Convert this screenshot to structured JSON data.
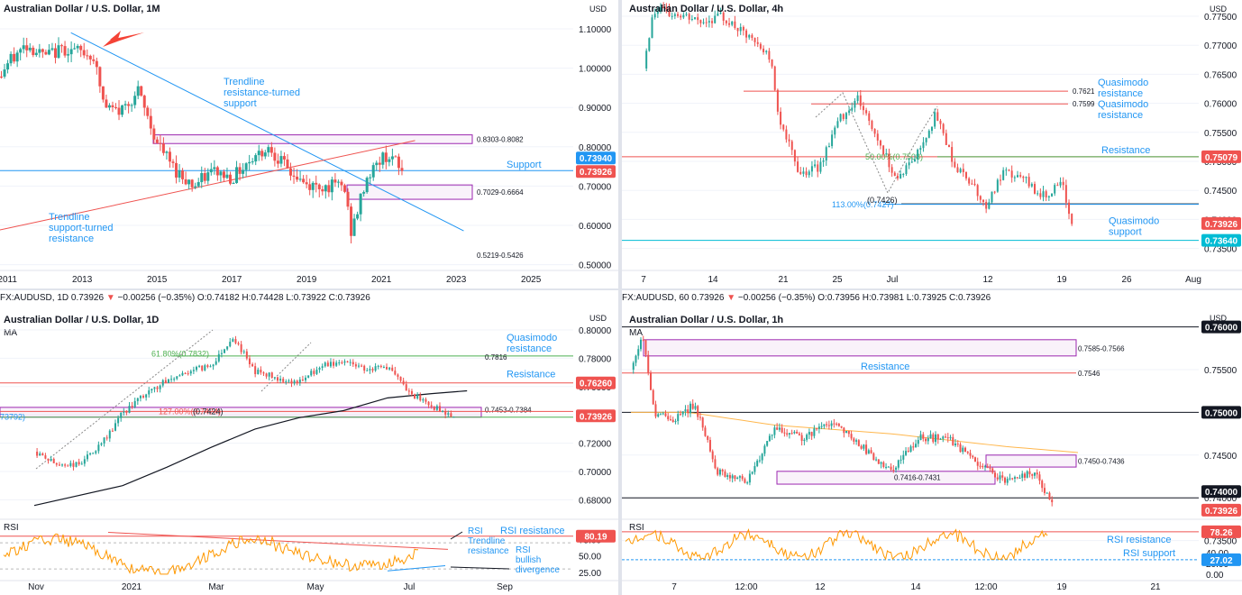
{
  "colors": {
    "up": "#26a69a",
    "down": "#ef5350",
    "blue": "#2196f3",
    "red": "#ef5350",
    "purple": "#9c27b0",
    "green": "#4caf50",
    "grid": "#f0f3fa",
    "axis_text": "#131722",
    "ma_orange": "#ffb74d",
    "rsi_orange": "#ff9800",
    "gray_dot": "#888888"
  },
  "panels": [
    {
      "id": "monthly",
      "title": "Australian Dollar / U.S. Dollar, 1M",
      "currency": "USD",
      "price_ticks": [
        "1.10000",
        "1.00000",
        "0.90000",
        "0.80000",
        "0.70000",
        "0.60000",
        "0.50000"
      ],
      "time_ticks": [
        "2011",
        "2013",
        "2015",
        "2017",
        "2019",
        "2021",
        "2023",
        "2025"
      ],
      "price_tags": [
        {
          "text": "0.73940",
          "color": "#2196f3"
        },
        {
          "text": "0.73926",
          "color": "#ef5350"
        }
      ],
      "annotations": [
        {
          "text": "Trendline\nresistance-turned\nsupport",
          "color": "#2196f3"
        },
        {
          "text": "Trendline\nsupport-turned\nresistance",
          "color": "#2196f3"
        },
        {
          "text": "Support",
          "color": "#2196f3"
        },
        {
          "text": "0.8303-0.8082",
          "color": "#131722"
        },
        {
          "text": "0.7029-0.6664",
          "color": "#131722"
        },
        {
          "text": "0.5219-0.5426",
          "color": "#131722"
        }
      ]
    },
    {
      "id": "h4",
      "title": "Australian Dollar / U.S. Dollar, 4h",
      "currency": "USD",
      "price_ticks": [
        "0.77500",
        "0.77000",
        "0.76500",
        "0.76000",
        "0.75500",
        "0.75000",
        "0.74500",
        "0.74000",
        "0.73500"
      ],
      "time_ticks": [
        "7",
        "14",
        "21",
        "25",
        "Jul",
        "12",
        "19",
        "26",
        "Aug"
      ],
      "price_tags": [
        {
          "text": "0.75079",
          "color": "#ef5350"
        },
        {
          "text": "0.73926",
          "color": "#ef5350"
        },
        {
          "text": "0.73640",
          "color": "#00bcd4"
        }
      ],
      "annotations": [
        {
          "text": "Quasimodo\nresistance",
          "color": "#2196f3"
        },
        {
          "text": "Quasimodo\nresistance",
          "color": "#2196f3"
        },
        {
          "text": "Resistance",
          "color": "#2196f3"
        },
        {
          "text": "Quasimodo\nsupport",
          "color": "#2196f3"
        },
        {
          "text": "0.7621",
          "color": "#131722"
        },
        {
          "text": "0.7599",
          "color": "#131722"
        },
        {
          "text": "50.00%(0.7508)",
          "color": "#4caf50"
        },
        {
          "text": "113.00%(0.7427)",
          "color": "#2196f3"
        },
        {
          "text": "(0.7426)",
          "color": "#131722"
        }
      ]
    },
    {
      "id": "d1",
      "title": "Australian Dollar / U.S. Dollar, 1D",
      "ohlc": {
        "symbol": "FX:AUDUSD, 1D",
        "last": "0.73926",
        "change": "−0.00256 (−0.35%)",
        "o": "0.74182",
        "h": "0.74428",
        "l": "0.73922",
        "c": "0.73926"
      },
      "currency": "USD",
      "ma_label": "MA",
      "price_ticks": [
        "0.80000",
        "0.78000",
        "0.76000",
        "0.74000",
        "0.72000",
        "0.70000",
        "0.68000"
      ],
      "time_ticks": [
        "Nov",
        "2021",
        "Mar",
        "May",
        "Jul",
        "Sep"
      ],
      "price_tags": [
        {
          "text": "0.76260",
          "color": "#ef5350"
        },
        {
          "text": "0.73926",
          "color": "#ef5350"
        }
      ],
      "annotations": [
        {
          "text": "Quasimodo\nresistance",
          "color": "#2196f3"
        },
        {
          "text": "Resistance",
          "color": "#2196f3"
        },
        {
          "text": "61.80%(0.7832)",
          "color": "#4caf50"
        },
        {
          "text": "127.00%(0.7424)",
          "color": "#ef5350"
        },
        {
          "text": "0.7816",
          "color": "#131722"
        },
        {
          "text": "0.7453-0.7384",
          "color": "#131722"
        },
        {
          "text": "(0.7424)",
          "color": "#131722"
        },
        {
          "text": "73792)",
          "color": "#2196f3"
        }
      ],
      "rsi": {
        "label": "RSI",
        "ticks": [
          "75.00",
          "50.00",
          "25.00"
        ],
        "tag": {
          "text": "80.19",
          "color": "#ef5350"
        },
        "annotations": [
          "RSI resistance",
          "RSI\nTrendline\nresistance",
          "RSI\nbullish\ndivergence"
        ]
      }
    },
    {
      "id": "h1",
      "title": "Australian Dollar / U.S. Dollar, 1h",
      "ohlc": {
        "symbol": "FX:AUDUSD, 60",
        "last": "0.73926",
        "change": "−0.00256 (−0.35%)",
        "o": "0.73956",
        "h": "0.73981",
        "l": "0.73925",
        "c": "0.73926"
      },
      "currency": "USD",
      "ma_label": "MA",
      "price_ticks": [
        "0.75500",
        "0.75000",
        "0.74500",
        "0.74000",
        "0.73500"
      ],
      "time_ticks": [
        "7",
        "12:00",
        "12",
        "14",
        "12:00",
        "19",
        "21"
      ],
      "price_tags": [
        {
          "text": "0.76000",
          "color": "#131722"
        },
        {
          "text": "0.75000",
          "color": "#131722"
        },
        {
          "text": "0.74000",
          "color": "#131722"
        },
        {
          "text": "0.73926",
          "color": "#ef5350"
        }
      ],
      "annotations": [
        {
          "text": "0.7585-0.7566",
          "color": "#131722"
        },
        {
          "text": "Resistance",
          "color": "#2196f3"
        },
        {
          "text": "0.7546",
          "color": "#131722"
        },
        {
          "text": "0.7450-0.7436",
          "color": "#131722"
        },
        {
          "text": "0.7416-0.7431",
          "color": "#131722"
        }
      ],
      "rsi": {
        "label": "RSI",
        "ticks": [
          "40.00",
          "20.00",
          "0.00"
        ],
        "tags": [
          {
            "text": "78.26",
            "color": "#ef5350"
          },
          {
            "text": "27.02",
            "color": "#2196f3"
          }
        ],
        "annotations": [
          "RSI resistance",
          "RSI support"
        ]
      }
    }
  ],
  "chart_data": [
    {
      "type": "candlestick",
      "title": "Australian Dollar / U.S. Dollar, 1M",
      "ylim": [
        0.48,
        1.16
      ],
      "x_range": [
        "2010",
        "2025"
      ],
      "levels": [
        {
          "name": "Support",
          "value": 0.7394
        },
        {
          "zone": "0.8303-0.8082",
          "from": 0.8082,
          "to": 0.8303
        },
        {
          "zone": "0.7029-0.6664",
          "from": 0.6664,
          "to": 0.7029
        },
        {
          "label": "0.5219-0.5426"
        }
      ],
      "trendlines": [
        {
          "name": "Trendline resistance-turned support",
          "from": [
            2012.7,
            1.09
          ],
          "to": [
            2023.2,
            0.586
          ]
        },
        {
          "name": "Trendline support-turned resistance",
          "from": [
            2010,
            0.572
          ],
          "to": [
            2021.9,
            0.816
          ]
        }
      ],
      "close_path": [
        [
          2010.5,
          0.93
        ],
        [
          2011.0,
          1.01
        ],
        [
          2011.5,
          1.06
        ],
        [
          2012.0,
          1.03
        ],
        [
          2012.5,
          1.05
        ],
        [
          2013.0,
          1.04
        ],
        [
          2013.3,
          1.03
        ],
        [
          2013.6,
          0.9
        ],
        [
          2014.0,
          0.89
        ],
        [
          2014.5,
          0.94
        ],
        [
          2015.0,
          0.81
        ],
        [
          2015.5,
          0.74
        ],
        [
          2016.0,
          0.7
        ],
        [
          2016.5,
          0.74
        ],
        [
          2017.0,
          0.72
        ],
        [
          2017.5,
          0.77
        ],
        [
          2018.0,
          0.8
        ],
        [
          2018.5,
          0.74
        ],
        [
          2019.0,
          0.7
        ],
        [
          2019.5,
          0.7
        ],
        [
          2020.0,
          0.7
        ],
        [
          2020.2,
          0.58
        ],
        [
          2020.6,
          0.72
        ],
        [
          2021.0,
          0.77
        ],
        [
          2021.2,
          0.78
        ],
        [
          2021.55,
          0.7393
        ]
      ]
    },
    {
      "type": "candlestick",
      "title": "Australian Dollar / U.S. Dollar, 4h",
      "ylim": [
        0.7325,
        0.7795
      ],
      "x_range": [
        "Jun 3",
        "Aug 2"
      ],
      "levels": [
        {
          "name": "Quasimodo resistance",
          "value": 0.7621
        },
        {
          "name": "Quasimodo resistance",
          "value": 0.7599
        },
        {
          "name": "Resistance",
          "value": 0.75079
        },
        {
          "name": "50.00%",
          "value": 0.7508
        },
        {
          "name": "113.00%",
          "value": 0.7427
        },
        {
          "value": 0.7426
        },
        {
          "name": "Quasimodo support",
          "value": 0.7364
        }
      ],
      "close_path": [
        [
          3,
          0.766
        ],
        [
          4,
          0.776
        ],
        [
          7,
          0.775
        ],
        [
          9,
          0.774
        ],
        [
          11,
          0.775
        ],
        [
          14,
          0.771
        ],
        [
          16,
          0.768
        ],
        [
          17,
          0.757
        ],
        [
          19,
          0.748
        ],
        [
          21,
          0.749
        ],
        [
          23,
          0.757
        ],
        [
          25,
          0.761
        ],
        [
          27,
          0.754
        ],
        [
          29,
          0.747
        ],
        [
          31,
          0.751
        ],
        [
          33,
          0.758
        ],
        [
          34,
          0.754
        ],
        [
          35,
          0.749
        ],
        [
          37,
          0.746
        ],
        [
          38,
          0.742
        ],
        [
          40,
          0.748
        ],
        [
          42,
          0.747
        ],
        [
          44,
          0.744
        ],
        [
          46,
          0.746
        ],
        [
          47,
          0.7393
        ]
      ]
    },
    {
      "type": "candlestick",
      "title": "Australian Dollar / U.S. Dollar, 1D",
      "ylim": [
        0.668,
        0.806
      ],
      "x_range": [
        "Oct 2020",
        "Sep 2021"
      ],
      "levels": [
        {
          "name": "Quasimodo resistance",
          "value": 0.7816
        },
        {
          "name": "61.80%",
          "value": 0.7832
        },
        {
          "name": "Resistance",
          "value": 0.7626
        },
        {
          "zone": "0.7453-0.7384",
          "from": 0.7384,
          "to": 0.7453
        },
        {
          "name": "127.00%",
          "value": 0.7424
        }
      ],
      "close_path": [
        [
          0,
          0.714
        ],
        [
          0.5,
          0.705
        ],
        [
          1,
          0.705
        ],
        [
          1.5,
          0.718
        ],
        [
          2,
          0.741
        ],
        [
          2.5,
          0.754
        ],
        [
          3,
          0.764
        ],
        [
          3.5,
          0.771
        ],
        [
          4,
          0.775
        ],
        [
          4.5,
          0.795
        ],
        [
          5,
          0.771
        ],
        [
          5.5,
          0.766
        ],
        [
          6,
          0.763
        ],
        [
          6.5,
          0.774
        ],
        [
          7,
          0.778
        ],
        [
          7.5,
          0.773
        ],
        [
          8,
          0.774
        ],
        [
          8.5,
          0.755
        ],
        [
          9,
          0.746
        ],
        [
          9.5,
          0.7393
        ]
      ],
      "ma_path": [
        [
          0,
          0.676
        ],
        [
          2,
          0.69
        ],
        [
          3,
          0.703
        ],
        [
          4,
          0.717
        ],
        [
          5,
          0.73
        ],
        [
          6,
          0.738
        ],
        [
          7,
          0.743
        ],
        [
          8,
          0.752
        ],
        [
          9,
          0.755
        ],
        [
          9.8,
          0.757
        ]
      ],
      "rsi": {
        "ylim": [
          15,
          95
        ],
        "value": 80.19,
        "reference_levels": [
          70,
          30
        ],
        "trendline": {
          "from": [
            3,
            86
          ],
          "to": [
            9.5,
            60
          ]
        },
        "divergence_line": {
          "from": [
            8.7,
            27
          ],
          "to": [
            9.8,
            35
          ]
        }
      }
    },
    {
      "type": "candlestick",
      "title": "Australian Dollar / U.S. Dollar, 1h",
      "ylim": [
        0.7315,
        0.7625
      ],
      "x_range": [
        "Jul 6",
        "Jul 21"
      ],
      "levels": [
        {
          "value": 0.76
        },
        {
          "zone": "0.7585-0.7566",
          "from": 0.7566,
          "to": 0.7585
        },
        {
          "name": "Resistance",
          "value": 0.7546
        },
        {
          "value": 0.75
        },
        {
          "zone": "0.7450-0.7436",
          "from": 0.7436,
          "to": 0.745
        },
        {
          "zone": "0.7416-0.7431",
          "from": 0.7416,
          "to": 0.7431
        },
        {
          "value": 0.74
        }
      ],
      "close_path": [
        [
          0,
          0.755
        ],
        [
          0.4,
          0.759
        ],
        [
          0.8,
          0.75
        ],
        [
          1.5,
          0.749
        ],
        [
          2.2,
          0.751
        ],
        [
          3,
          0.743
        ],
        [
          4,
          0.742
        ],
        [
          5,
          0.748
        ],
        [
          6,
          0.747
        ],
        [
          7,
          0.749
        ],
        [
          8,
          0.746
        ],
        [
          9,
          0.743
        ],
        [
          10,
          0.747
        ],
        [
          11,
          0.747
        ],
        [
          12,
          0.744
        ],
        [
          13,
          0.742
        ],
        [
          14,
          0.743
        ],
        [
          14.6,
          0.7393
        ]
      ],
      "ma_path": [
        [
          0,
          0.75
        ],
        [
          2,
          0.75
        ],
        [
          5,
          0.7485
        ],
        [
          9,
          0.7475
        ],
        [
          13,
          0.746
        ],
        [
          15.5,
          0.7453
        ]
      ],
      "rsi": {
        "ylim": [
          -8,
          88
        ],
        "values": [
          {
            "name": "RSI resistance",
            "value": 78.26
          },
          {
            "name": "RSI support",
            "value": 27.02
          }
        ]
      }
    }
  ]
}
